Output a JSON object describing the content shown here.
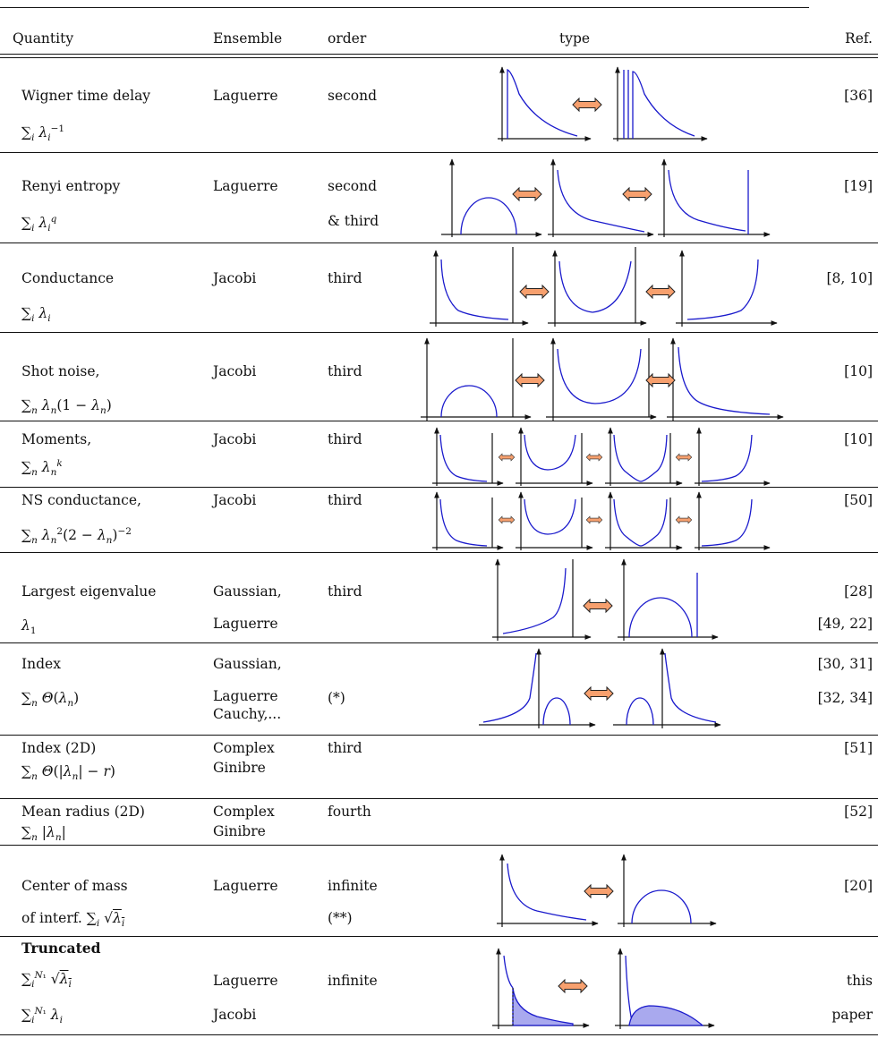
{
  "header": {
    "quantity": "Quantity",
    "ensemble": "Ensemble",
    "order": "order",
    "type": "type",
    "ref": "Ref."
  },
  "rows": [
    {
      "q1": "Wigner time delay",
      "ensemble": [
        "Laguerre"
      ],
      "order": [
        "second"
      ],
      "ref": [
        "[36]"
      ]
    },
    {
      "q1": "Renyi entropy",
      "ensemble": [
        "Laguerre"
      ],
      "order": [
        "second",
        "& third"
      ],
      "ref": [
        "[19]"
      ]
    },
    {
      "q1": "Conductance",
      "ensemble": [
        "Jacobi"
      ],
      "order": [
        "third"
      ],
      "ref": [
        "[8, 10]"
      ]
    },
    {
      "q1": "Shot noise,",
      "ensemble": [
        "Jacobi"
      ],
      "order": [
        "third"
      ],
      "ref": [
        "[10]"
      ]
    },
    {
      "q1": "Moments,",
      "ensemble": [
        "Jacobi"
      ],
      "order": [
        "third"
      ],
      "ref": [
        "[10]"
      ]
    },
    {
      "q1": "NS conductance,",
      "ensemble": [
        "Jacobi"
      ],
      "order": [
        "third"
      ],
      "ref": [
        "[50]"
      ]
    },
    {
      "q1": "Largest eigenvalue",
      "ensemble": [
        "Gaussian,",
        "Laguerre"
      ],
      "order": [
        "third"
      ],
      "ref": [
        "[28]",
        "[49, 22]"
      ]
    },
    {
      "q1": "Index",
      "ensemble": [
        "Gaussian,",
        "Laguerre",
        "Cauchy,..."
      ],
      "order": [
        "(*)"
      ],
      "ref": [
        "[30, 31]",
        "[32, 34]"
      ]
    },
    {
      "q1": "Index (2D)",
      "ensemble": [
        "Complex",
        "Ginibre"
      ],
      "order": [
        "third"
      ],
      "ref": [
        "[51]"
      ]
    },
    {
      "q1": "Mean radius (2D)",
      "ensemble": [
        "Complex",
        "Ginibre"
      ],
      "order": [
        "fourth"
      ],
      "ref": [
        "[52]"
      ]
    },
    {
      "q1": "Center of mass",
      "q2": "of interf.",
      "ensemble": [
        "Laguerre"
      ],
      "order": [
        "infinite",
        "(**)"
      ],
      "ref": [
        "[20]"
      ]
    },
    {
      "q1": "Truncated",
      "ensemble": [
        "Laguerre",
        "Jacobi"
      ],
      "order": [
        "infinite"
      ],
      "ref": [
        "this",
        "paper"
      ]
    }
  ],
  "colors": {
    "curve": "#1a1acc",
    "arrow_fill": "#f7a06e",
    "arrow_stroke": "#222222",
    "shade": "#a9a9ee"
  }
}
